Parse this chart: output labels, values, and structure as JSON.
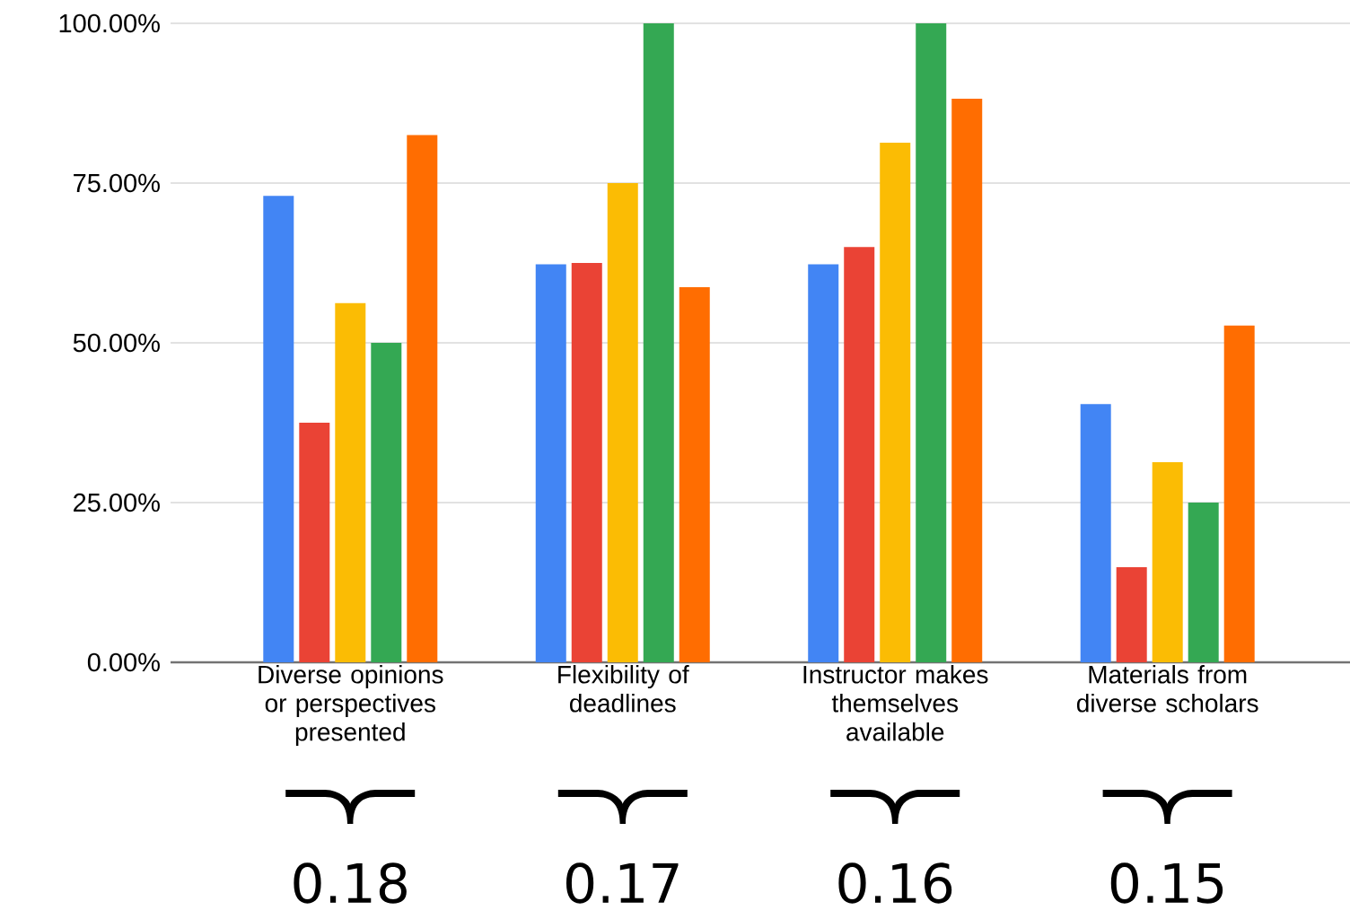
{
  "chart_data": {
    "type": "bar",
    "categories": [
      "Diverse opinions or perspectives presented",
      "Flexibility of deadlines",
      "Instructor makes themselves available",
      "Materials from diverse scholars"
    ],
    "series": [
      {
        "color": "#4285f4",
        "values": [
          73.0,
          62.3,
          62.3,
          40.4
        ]
      },
      {
        "color": "#ea4335",
        "values": [
          37.5,
          62.5,
          65.0,
          14.9
        ]
      },
      {
        "color": "#fbbc04",
        "values": [
          56.2,
          75.0,
          81.3,
          31.3
        ]
      },
      {
        "color": "#34a853",
        "values": [
          50.0,
          100.0,
          100.0,
          25.0
        ]
      },
      {
        "color": "#ff6d01",
        "values": [
          82.5,
          58.7,
          88.2,
          52.7
        ]
      }
    ],
    "ylim": [
      0,
      100
    ],
    "yticks": [
      {
        "value": 0,
        "label": "0.00%"
      },
      {
        "value": 25,
        "label": "25.00%"
      },
      {
        "value": 50,
        "label": "50.00%"
      },
      {
        "value": 75,
        "label": "75.00%"
      },
      {
        "value": 100,
        "label": "100.00%"
      }
    ],
    "grid": "y",
    "annotations": [
      "0.18",
      "0.17",
      "0.16",
      "0.15"
    ]
  }
}
